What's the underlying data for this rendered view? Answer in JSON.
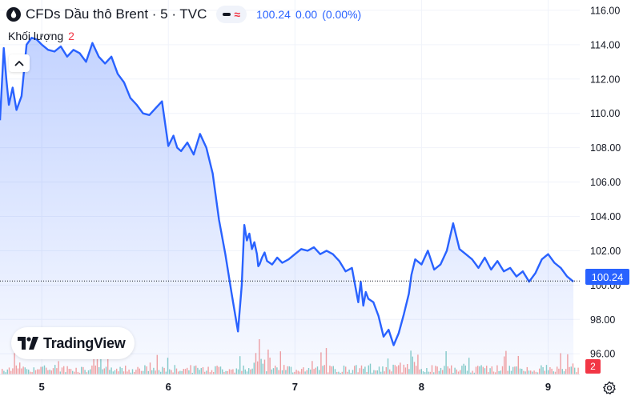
{
  "header": {
    "symbol": "CFDs Dầu thô Brent · 5 · TVC",
    "last_price": "100.24",
    "change": "0.00",
    "change_pct": "(0.00%)"
  },
  "volume_label": {
    "name": "Khối lượng",
    "count": "2"
  },
  "logo_text": "TradingView",
  "price_tag": "100.24",
  "volume_tag": "2",
  "colors": {
    "line": "#2962ff",
    "up_volume": "#26a69a",
    "down_volume": "#ef5350",
    "accent": "#2962ff"
  },
  "icons": [
    "drop-icon",
    "chevron-up-icon",
    "tradingview-logo-icon",
    "gear-icon"
  ],
  "chart_data": {
    "type": "area",
    "title": "CFDs Dầu thô Brent · 5 · TVC",
    "x_tick_labels": [
      "5",
      "6",
      "7",
      "8",
      "9"
    ],
    "x_ticks": [
      5,
      6,
      7,
      8,
      9
    ],
    "xlim": [
      4.67,
      9.25
    ],
    "y_tick_labels": [
      "96.00",
      "98.00",
      "100.00",
      "102.00",
      "104.00",
      "106.00",
      "108.00",
      "110.00",
      "112.00",
      "114.00",
      "116.00"
    ],
    "ylim": [
      94.8,
      116.6
    ],
    "last_value": 100.24,
    "grid": true,
    "series": [
      {
        "x": [
          4.67,
          4.7,
          4.72,
          4.74,
          4.77,
          4.8,
          4.84,
          4.88,
          4.92,
          4.96,
          5.0,
          5.05,
          5.1,
          5.15,
          5.2,
          5.25,
          5.3,
          5.35,
          5.4,
          5.45,
          5.5,
          5.55,
          5.6,
          5.65,
          5.7,
          5.75,
          5.8,
          5.85,
          5.9,
          5.95,
          6.0,
          6.04,
          6.07,
          6.1,
          6.15,
          6.2,
          6.25,
          6.3,
          6.35,
          6.4,
          6.45,
          6.5,
          6.55,
          6.58,
          6.6,
          6.62,
          6.64,
          6.66,
          6.68,
          6.7,
          6.71,
          6.72,
          6.74,
          6.76,
          6.78,
          6.82,
          6.86,
          6.9,
          6.95,
          7.0,
          7.05,
          7.1,
          7.15,
          7.2,
          7.25,
          7.3,
          7.35,
          7.4,
          7.45,
          7.5,
          7.52,
          7.54,
          7.56,
          7.58,
          7.62,
          7.66,
          7.7,
          7.74,
          7.78,
          7.82,
          7.86,
          7.9,
          7.92,
          7.95,
          8.0,
          8.05,
          8.1,
          8.15,
          8.2,
          8.25,
          8.3,
          8.35,
          8.4,
          8.45,
          8.5,
          8.55,
          8.6,
          8.65,
          8.7,
          8.75,
          8.8,
          8.85,
          8.9,
          8.95,
          9.0,
          9.05,
          9.1,
          9.15,
          9.2
        ],
        "y": [
          109.6,
          113.8,
          112.0,
          110.5,
          111.5,
          110.2,
          111.0,
          114.0,
          114.4,
          114.3,
          114.0,
          113.7,
          113.6,
          113.9,
          113.3,
          113.7,
          113.5,
          113.0,
          114.1,
          113.3,
          112.9,
          113.3,
          112.3,
          111.8,
          110.9,
          110.5,
          110.0,
          109.9,
          110.3,
          110.7,
          108.1,
          108.7,
          108.0,
          107.8,
          108.3,
          107.6,
          108.8,
          108.0,
          106.5,
          103.8,
          101.8,
          99.5,
          97.3,
          100.0,
          103.5,
          102.6,
          103.0,
          102.1,
          102.5,
          101.8,
          101.1,
          101.2,
          101.6,
          101.9,
          101.4,
          101.2,
          101.6,
          101.3,
          101.5,
          101.8,
          102.1,
          102.0,
          102.2,
          101.8,
          102.0,
          101.8,
          101.4,
          100.8,
          101.0,
          99.0,
          100.2,
          98.8,
          99.6,
          99.2,
          99.0,
          98.2,
          97.0,
          97.4,
          96.5,
          97.2,
          98.3,
          99.5,
          100.6,
          101.5,
          101.2,
          102.0,
          100.9,
          101.2,
          102.0,
          103.6,
          102.1,
          101.8,
          101.5,
          101.0,
          101.6,
          100.9,
          101.4,
          100.8,
          101.0,
          100.5,
          100.8,
          100.2,
          100.7,
          101.5,
          101.8,
          101.3,
          101.0,
          100.5,
          100.2
        ]
      }
    ]
  }
}
